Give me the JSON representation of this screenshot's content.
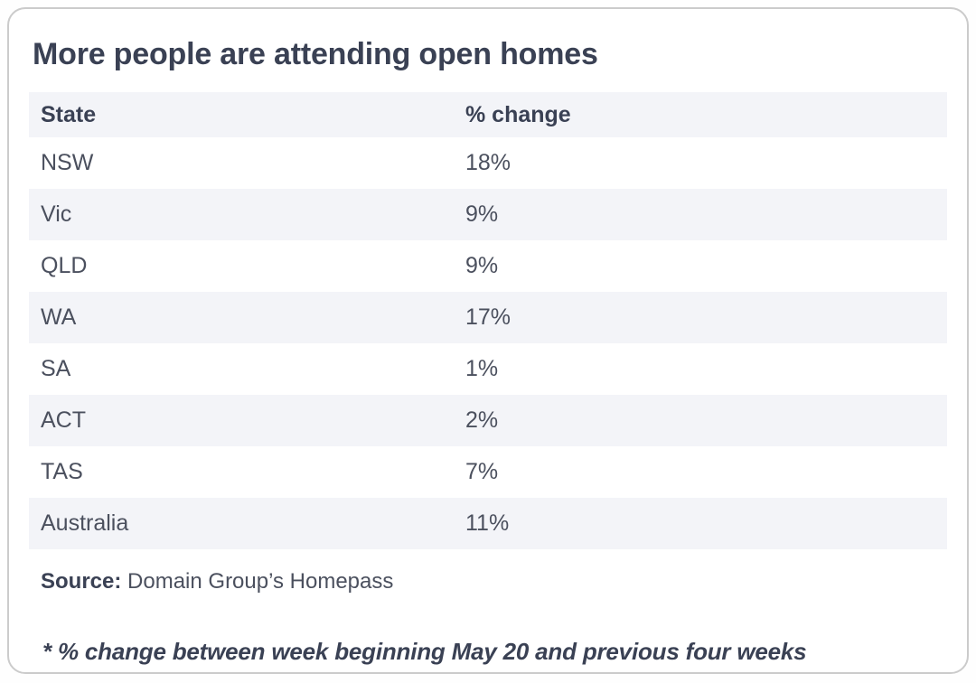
{
  "card": {
    "title": "More people are attending open homes",
    "table": {
      "columns": [
        "State",
        "% change"
      ],
      "rows": [
        {
          "state": "NSW",
          "change": "18%"
        },
        {
          "state": "Vic",
          "change": "9%"
        },
        {
          "state": "QLD",
          "change": "9%"
        },
        {
          "state": "WA",
          "change": "17%"
        },
        {
          "state": "SA",
          "change": "1%"
        },
        {
          "state": "ACT",
          "change": "2%"
        },
        {
          "state": "TAS",
          "change": "7%"
        },
        {
          "state": "Australia",
          "change": "11%"
        }
      ]
    },
    "source": {
      "label": "Source:",
      "text": " Domain Group’s Homepass"
    },
    "footnote": "* % change between week beginning May 20 and previous four weeks",
    "colors": {
      "heading_text": "#3a4154",
      "row_text": "#4b505e",
      "stripe": "#f3f4f8",
      "card_border": "#cbcbcb",
      "card_bg": "#ffffff"
    }
  },
  "chart_data": {
    "type": "table",
    "title": "More people are attending open homes",
    "columns": [
      "State",
      "% change"
    ],
    "categories": [
      "NSW",
      "Vic",
      "QLD",
      "WA",
      "SA",
      "ACT",
      "TAS",
      "Australia"
    ],
    "values": [
      18,
      9,
      9,
      17,
      1,
      2,
      7,
      11
    ],
    "unit": "%",
    "source": "Domain Group’s Homepass",
    "footnote": "* % change between week beginning May 20 and previous four weeks",
    "layout": {
      "striped_rows": true,
      "header_background": "#f3f4f8",
      "first_data_row_background": "#ffffff"
    }
  }
}
